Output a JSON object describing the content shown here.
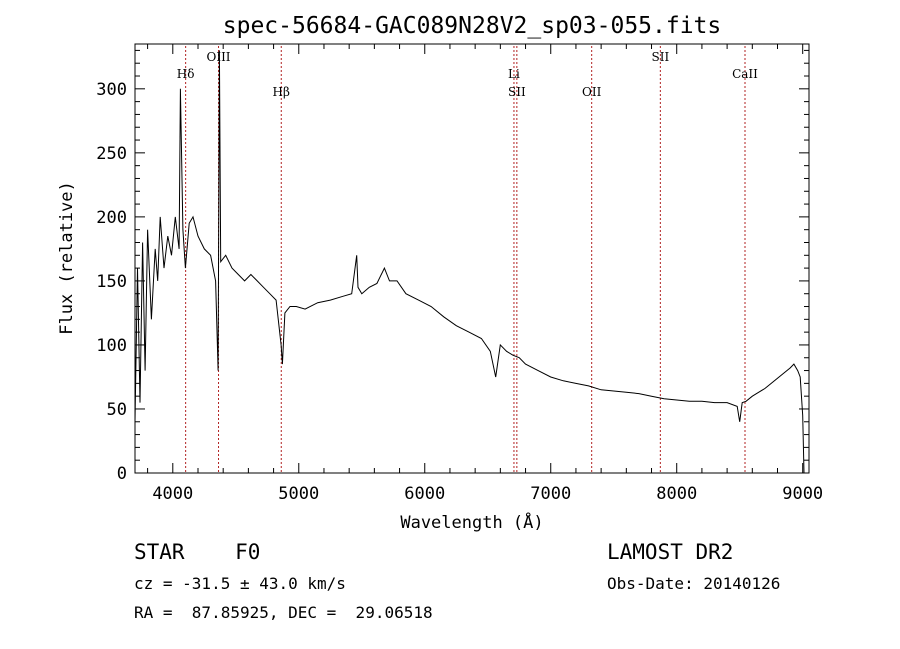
{
  "chart_data": {
    "type": "line",
    "title": "spec-56684-GAC089N28V2_sp03-055.fits",
    "xlabel": "Wavelength (Å)",
    "ylabel": "Flux (relative)",
    "xlim": [
      3700,
      9050
    ],
    "ylim": [
      0,
      335
    ],
    "xticks": [
      4000,
      5000,
      6000,
      7000,
      8000,
      9000
    ],
    "yticks": [
      0,
      50,
      100,
      150,
      200,
      250,
      300
    ],
    "grid": false,
    "series": [
      {
        "x": [
          3700,
          3720,
          3740,
          3760,
          3780,
          3800,
          3830,
          3860,
          3880,
          3900,
          3930,
          3960,
          3990,
          4020,
          4050,
          4060,
          4080,
          4100,
          4130,
          4160,
          4200,
          4250,
          4300,
          4340,
          4360,
          4370,
          4380,
          4420,
          4470,
          4520,
          4570,
          4620,
          4670,
          4720,
          4770,
          4820,
          4860,
          4870,
          4890,
          4930,
          4980,
          5050,
          5150,
          5250,
          5350,
          5420,
          5460,
          5470,
          5500,
          5560,
          5620,
          5680,
          5720,
          5780,
          5850,
          5950,
          6050,
          6150,
          6250,
          6350,
          6450,
          6520,
          6563,
          6600,
          6650,
          6700,
          6750,
          6800,
          6900,
          7000,
          7100,
          7200,
          7300,
          7400,
          7500,
          7600,
          7700,
          7800,
          7900,
          8000,
          8100,
          8200,
          8300,
          8400,
          8480,
          8500,
          8520,
          8550,
          8600,
          8650,
          8700,
          8750,
          8800,
          8850,
          8900,
          8930,
          8960,
          8980,
          9000,
          9010
        ],
        "y": [
          40,
          160,
          55,
          180,
          80,
          190,
          120,
          175,
          150,
          200,
          160,
          185,
          170,
          200,
          175,
          300,
          190,
          160,
          195,
          200,
          185,
          175,
          170,
          150,
          80,
          330,
          165,
          170,
          160,
          155,
          150,
          155,
          150,
          145,
          140,
          135,
          100,
          85,
          125,
          130,
          130,
          128,
          133,
          135,
          138,
          140,
          170,
          145,
          140,
          145,
          148,
          160,
          150,
          150,
          140,
          135,
          130,
          122,
          115,
          110,
          105,
          95,
          75,
          100,
          95,
          92,
          90,
          85,
          80,
          75,
          72,
          70,
          68,
          65,
          64,
          63,
          62,
          60,
          58,
          57,
          56,
          56,
          55,
          55,
          52,
          40,
          55,
          56,
          60,
          63,
          66,
          70,
          74,
          78,
          82,
          85,
          80,
          75,
          45,
          0
        ]
      }
    ],
    "lines": [
      {
        "label": "Hδ",
        "x": 4102,
        "row": 2
      },
      {
        "label": "OIII",
        "x": 4363,
        "row": 1
      },
      {
        "label": "Hβ",
        "x": 4861,
        "row": 3
      },
      {
        "label": "Li",
        "x": 6708,
        "row": 2
      },
      {
        "label": "SII",
        "x": 6731,
        "row": 3
      },
      {
        "label": "OII",
        "x": 7325,
        "row": 3
      },
      {
        "label": "SII",
        "x": 7870,
        "row": 1
      },
      {
        "label": "CaII",
        "x": 8542,
        "row": 2
      }
    ]
  },
  "info": {
    "object": "STAR    F0",
    "cz": "cz = -31.5 ± 43.0 km/s",
    "coords": "RA =  87.85925, DEC =  29.06518",
    "survey": "LAMOST DR2",
    "obsdate": "Obs-Date: 20140126"
  }
}
